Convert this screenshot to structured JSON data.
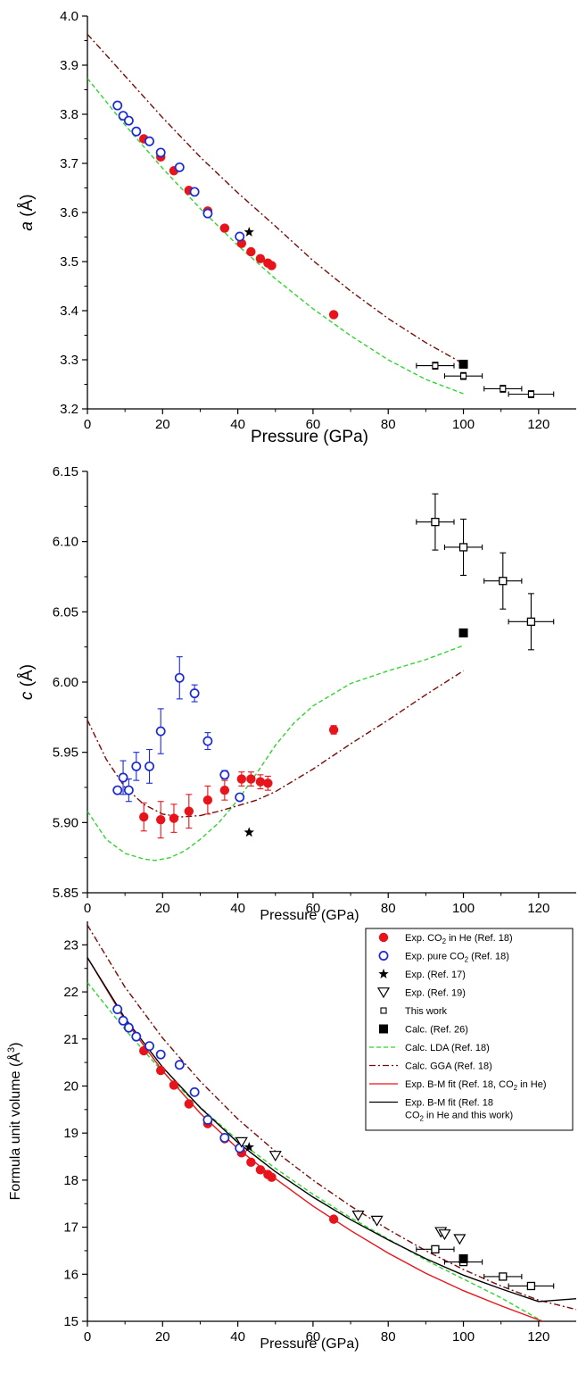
{
  "colors": {
    "exp_he": "#e8141b",
    "exp_pure": "#1a2bd6",
    "lda": "#2fd62f",
    "gga": "#7a0a0a",
    "bm_he": "#e8141b",
    "bm_all": "#000000",
    "black": "#000000"
  },
  "chart_data": [
    {
      "type": "scatter",
      "xlabel": "Pressure (GPa)",
      "ylabel_var": "a",
      "ylabel_unit": " (Å)",
      "xlim": [
        0,
        130
      ],
      "ylim": [
        3.2,
        4.0
      ],
      "xticks": [
        "0",
        "20",
        "40",
        "60",
        "80",
        "100",
        "120"
      ],
      "yticks": [
        "3.2",
        "3.3",
        "3.4",
        "3.5",
        "3.6",
        "3.7",
        "3.8",
        "3.9",
        "4.0"
      ],
      "series": [
        {
          "key": "exp_he",
          "marker": "filled-circle",
          "x": [
            15,
            19.5,
            23,
            27,
            32,
            36.5,
            41,
            43.5,
            46,
            48,
            49,
            65.5
          ],
          "y": [
            3.75,
            3.713,
            3.685,
            3.645,
            3.603,
            3.568,
            3.537,
            3.52,
            3.506,
            3.497,
            3.492,
            3.392
          ]
        },
        {
          "key": "exp_pure",
          "marker": "open-circle",
          "x": [
            8,
            9.5,
            11,
            13,
            16.5,
            19.5,
            24.5,
            28.5,
            32,
            40.5
          ],
          "y": [
            3.818,
            3.797,
            3.787,
            3.765,
            3.745,
            3.722,
            3.692,
            3.642,
            3.598,
            3.551
          ]
        },
        {
          "key": "exp_ref17",
          "marker": "star",
          "x": [
            43
          ],
          "y": [
            3.56
          ]
        },
        {
          "key": "this_work",
          "marker": "open-square-small",
          "x": [
            92.5,
            100,
            110.5,
            118
          ],
          "y": [
            3.288,
            3.267,
            3.241,
            3.23
          ],
          "xerr": [
            5,
            5,
            5,
            6
          ],
          "yerr": [
            0.007,
            0.007,
            0.007,
            0.007
          ]
        },
        {
          "key": "calc_ref26",
          "marker": "filled-square",
          "x": [
            100
          ],
          "y": [
            3.291
          ]
        },
        {
          "key": "lda",
          "style": "dashed",
          "x": [
            0,
            10,
            20,
            30,
            40,
            50,
            60,
            70,
            80,
            90,
            100
          ],
          "y": [
            3.873,
            3.778,
            3.69,
            3.608,
            3.533,
            3.465,
            3.404,
            3.349,
            3.3,
            3.26,
            3.231
          ]
        },
        {
          "key": "gga",
          "style": "dashdot",
          "x": [
            0,
            10,
            20,
            30,
            40,
            50,
            60,
            70,
            80,
            90,
            100
          ],
          "y": [
            3.963,
            3.878,
            3.793,
            3.713,
            3.64,
            3.572,
            3.502,
            3.44,
            3.384,
            3.335,
            3.292
          ]
        }
      ]
    },
    {
      "type": "scatter",
      "xlabel": "Pressure (GPa)",
      "ylabel_var": "c",
      "ylabel_unit": " (Å)",
      "xlim": [
        0,
        130
      ],
      "ylim": [
        5.85,
        6.15
      ],
      "xticks": [
        "0",
        "20",
        "40",
        "60",
        "80",
        "100",
        "120"
      ],
      "yticks": [
        "5.85",
        "5.90",
        "5.95",
        "6.00",
        "6.05",
        "6.10",
        "6.15"
      ],
      "series": [
        {
          "key": "exp_he",
          "marker": "filled-circle",
          "x": [
            15,
            19.5,
            23,
            27,
            32,
            36.5,
            41,
            43.5,
            46,
            48,
            65.5
          ],
          "y": [
            5.904,
            5.902,
            5.903,
            5.908,
            5.916,
            5.923,
            5.931,
            5.931,
            5.929,
            5.928,
            5.966
          ],
          "yerr": [
            0.01,
            0.013,
            0.01,
            0.012,
            0.01,
            0.007,
            0.005,
            0.005,
            0.005,
            0.005,
            0.003
          ]
        },
        {
          "key": "exp_pure",
          "marker": "open-circle",
          "x": [
            8,
            9.5,
            11,
            13,
            16.5,
            19.5,
            24.5,
            28.5,
            32,
            36.5,
            40.5
          ],
          "y": [
            5.923,
            5.932,
            5.923,
            5.94,
            5.94,
            5.965,
            6.003,
            5.992,
            5.958,
            5.934,
            5.918
          ],
          "yerr": [
            0,
            0.012,
            0.008,
            0.01,
            0.012,
            0.016,
            0.015,
            0.006,
            0.006,
            0.003,
            0
          ]
        },
        {
          "key": "exp_ref17",
          "marker": "star",
          "x": [
            43
          ],
          "y": [
            5.893
          ]
        },
        {
          "key": "this_work",
          "marker": "open-square",
          "x": [
            92.5,
            100,
            110.5,
            118
          ],
          "y": [
            6.114,
            6.096,
            6.072,
            6.043
          ],
          "xerr": [
            5,
            5,
            5,
            6
          ],
          "yerr": [
            0.02,
            0.02,
            0.02,
            0.02
          ]
        },
        {
          "key": "calc_ref26",
          "marker": "filled-square",
          "x": [
            100
          ],
          "y": [
            6.035
          ]
        },
        {
          "key": "lda",
          "style": "dashed",
          "x": [
            0,
            5,
            10,
            15,
            18,
            22,
            26,
            30,
            35,
            40,
            45,
            50,
            55,
            60,
            70,
            80,
            90,
            100
          ],
          "y": [
            5.908,
            5.888,
            5.878,
            5.874,
            5.873,
            5.875,
            5.88,
            5.888,
            5.9,
            5.916,
            5.935,
            5.955,
            5.971,
            5.983,
            5.999,
            6.008,
            6.016,
            6.026
          ]
        },
        {
          "key": "gga",
          "style": "dashdot",
          "x": [
            0,
            5,
            10,
            15,
            20,
            25,
            30,
            35,
            40,
            45,
            50,
            60,
            70,
            80,
            90,
            100
          ],
          "y": [
            5.973,
            5.945,
            5.925,
            5.913,
            5.906,
            5.904,
            5.905,
            5.908,
            5.912,
            5.916,
            5.922,
            5.938,
            5.956,
            5.973,
            5.991,
            6.008
          ]
        }
      ]
    },
    {
      "type": "scatter",
      "xlabel": "Pressure (GPa)",
      "ylabel": "Formula unit volume (Å",
      "ylabel_sup": "3",
      "ylabel_tail": ")",
      "xlim": [
        0,
        130
      ],
      "ylim": [
        15,
        23.5
      ],
      "xticks": [
        "0",
        "20",
        "40",
        "60",
        "80",
        "100",
        "120"
      ],
      "yticks": [
        "15",
        "16",
        "17",
        "18",
        "19",
        "20",
        "21",
        "22",
        "23"
      ],
      "series": [
        {
          "key": "exp_he",
          "marker": "filled-circle",
          "x": [
            15,
            19.5,
            23,
            27,
            32,
            36.5,
            41,
            43.5,
            46,
            48,
            49,
            65.5
          ],
          "y": [
            20.75,
            20.33,
            20.02,
            19.62,
            19.2,
            18.88,
            18.58,
            18.38,
            18.22,
            18.12,
            18.06,
            17.17
          ]
        },
        {
          "key": "exp_pure",
          "marker": "open-circle",
          "x": [
            8,
            9.5,
            11,
            13,
            16.5,
            19.5,
            24.5,
            28.5,
            32,
            36.5,
            40.5
          ],
          "y": [
            21.63,
            21.39,
            21.24,
            21.05,
            20.85,
            20.67,
            20.45,
            19.87,
            19.28,
            18.9,
            18.68
          ]
        },
        {
          "key": "exp_ref17",
          "marker": "star",
          "x": [
            43
          ],
          "y": [
            18.7
          ]
        },
        {
          "key": "exp_ref19",
          "marker": "open-triangle-down",
          "x": [
            41,
            50,
            72,
            77,
            94,
            95,
            99
          ],
          "y": [
            18.81,
            18.52,
            17.25,
            17.14,
            16.9,
            16.85,
            16.75
          ]
        },
        {
          "key": "this_work",
          "marker": "open-square",
          "x": [
            92.5,
            100,
            110.5,
            118
          ],
          "y": [
            16.53,
            16.26,
            15.95,
            15.75
          ],
          "xerr": [
            5,
            5,
            5,
            6
          ],
          "yerr": [
            0.07,
            0.07,
            0.07,
            0.07
          ]
        },
        {
          "key": "calc_ref26",
          "marker": "filled-square",
          "x": [
            100
          ],
          "y": [
            16.33
          ]
        },
        {
          "key": "lda",
          "style": "dashed",
          "x": [
            0,
            10,
            20,
            30,
            40,
            50,
            60,
            70,
            80,
            90,
            100,
            110,
            121
          ],
          "y": [
            22.2,
            21.2,
            20.3,
            19.55,
            18.85,
            18.25,
            17.7,
            17.2,
            16.75,
            16.3,
            15.9,
            15.5,
            15.0
          ]
        },
        {
          "key": "gga",
          "style": "dashdot",
          "x": [
            0,
            10,
            20,
            30,
            40,
            50,
            60,
            70,
            80,
            90,
            100,
            110,
            120,
            130
          ],
          "y": [
            23.42,
            22.1,
            21.02,
            20.1,
            19.3,
            18.61,
            18.0,
            17.45,
            16.95,
            16.5,
            16.1,
            15.75,
            15.45,
            15.25
          ]
        },
        {
          "key": "bm_he",
          "style": "solid",
          "x": [
            0,
            10,
            20,
            30,
            40,
            50,
            60,
            70,
            80,
            90,
            100,
            110,
            121
          ],
          "y": [
            22.73,
            21.4,
            20.32,
            19.42,
            18.67,
            18.03,
            17.45,
            16.93,
            16.45,
            16.02,
            15.65,
            15.33,
            15.0
          ]
        },
        {
          "key": "bm_all",
          "style": "solid",
          "x": [
            0,
            10,
            20,
            30,
            40,
            50,
            60,
            70,
            80,
            90,
            100,
            110,
            120,
            130
          ],
          "y": [
            22.73,
            21.44,
            20.4,
            19.54,
            18.8,
            18.18,
            17.64,
            17.16,
            16.73,
            16.33,
            15.98,
            15.69,
            15.42,
            15.48
          ]
        }
      ],
      "legend": {
        "placement": "top-right",
        "entries": [
          {
            "key": "exp_he",
            "marker": "filled-circle",
            "label": "Exp. CO",
            "sub": "2",
            "tail": " in He (Ref. 18)"
          },
          {
            "key": "exp_pure",
            "marker": "open-circle",
            "label": "Exp. pure CO",
            "sub": "2",
            "tail": " (Ref. 18)"
          },
          {
            "key": "exp_ref17",
            "marker": "star",
            "label": "Exp. (Ref. 17)",
            "sub": "",
            "tail": ""
          },
          {
            "key": "exp_ref19",
            "marker": "open-triangle-down",
            "label": "Exp. (Ref. 19)",
            "sub": "",
            "tail": ""
          },
          {
            "key": "this_work",
            "marker": "open-square",
            "label": "This work",
            "sub": "",
            "tail": ""
          },
          {
            "key": "calc_ref26",
            "marker": "filled-square",
            "label": "Calc. (Ref. 26)",
            "sub": "",
            "tail": ""
          },
          {
            "key": "lda",
            "style": "dashed",
            "label": "Calc. LDA (Ref. 18)",
            "sub": "",
            "tail": ""
          },
          {
            "key": "gga",
            "style": "dashdot",
            "label": "Calc. GGA (Ref. 18)",
            "sub": "",
            "tail": ""
          },
          {
            "key": "bm_he",
            "style": "solid",
            "label": "Exp. B-M fit (Ref. 18, CO",
            "sub": "2",
            "tail": " in He)"
          },
          {
            "key": "bm_all",
            "style": "solid",
            "label": "Exp. B-M fit (Ref. 18",
            "sub": "",
            "tail": "",
            "line2": "CO",
            "line2_sub": "2",
            "line2_tail": " in He and this work)"
          }
        ]
      }
    }
  ]
}
